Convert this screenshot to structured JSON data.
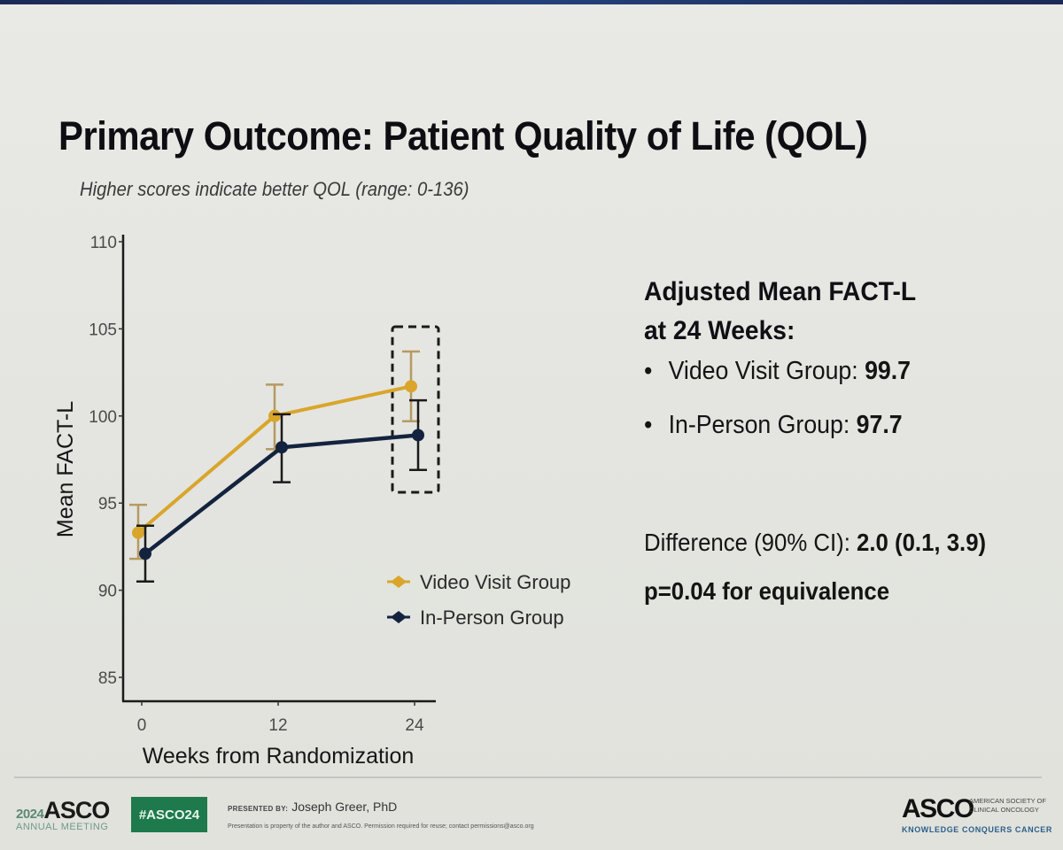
{
  "slide": {
    "title": "Primary Outcome: Patient Quality of Life (QOL)",
    "subtitle": "Higher scores indicate better QOL (range: 0-136)"
  },
  "colors": {
    "video": "#d9a52b",
    "in_person": "#13233f",
    "hashtag_bg": "#1e7a4c",
    "tagline": "#2b5f8a"
  },
  "chart_data": {
    "type": "line",
    "title": "",
    "xlabel": "Weeks from Randomization",
    "ylabel": "Mean FACT-L",
    "x": [
      0,
      12,
      24
    ],
    "x_ticks": [
      "0",
      "12",
      "24"
    ],
    "y_ticks": [
      "85",
      "90",
      "95",
      "100",
      "105",
      "110"
    ],
    "ylim": [
      85,
      110
    ],
    "xlim": [
      0,
      24
    ],
    "grid": false,
    "legend_position": "lower-right",
    "error_bars": true,
    "series": [
      {
        "name": "Video Visit Group",
        "color": "#d9a52b",
        "values": [
          93.3,
          100.0,
          101.7
        ],
        "ci_low": [
          91.8,
          98.1,
          99.7
        ],
        "ci_high": [
          94.9,
          101.8,
          103.7
        ]
      },
      {
        "name": "In-Person Group",
        "color": "#13233f",
        "values": [
          92.1,
          98.2,
          98.9
        ],
        "ci_low": [
          90.5,
          96.2,
          96.9
        ],
        "ci_high": [
          93.7,
          100.1,
          100.9
        ]
      }
    ],
    "annotations": [
      {
        "type": "dashed-box",
        "target_x": 24,
        "note": "highlights 24-week estimates"
      }
    ]
  },
  "panel": {
    "heading_line1": "Adjusted Mean FACT-L",
    "heading_line2": "at 24 Weeks:",
    "bullets": [
      {
        "label": "Video Visit Group: ",
        "value": "99.7"
      },
      {
        "label": "In-Person Group: ",
        "value": "97.7"
      }
    ],
    "difference_label": "Difference (90% CI): ",
    "difference_value": "2.0 (0.1, 3.9)",
    "p_value": "p=0.04 for equivalence"
  },
  "footer": {
    "meeting_year": "2024",
    "meeting_org": "ASCO",
    "meeting_sub": "ANNUAL MEETING",
    "hashtag": "#ASCO24",
    "presented_by_label": "PRESENTED BY:",
    "presenter": "Joseph Greer, PhD",
    "disclaimer": "Presentation is property of the author and ASCO. Permission required for reuse; contact permissions@asco.org",
    "society_name": "ASCO",
    "society_full": "AMERICAN SOCIETY OF CLINICAL ONCOLOGY",
    "tagline": "KNOWLEDGE CONQUERS CANCER"
  }
}
